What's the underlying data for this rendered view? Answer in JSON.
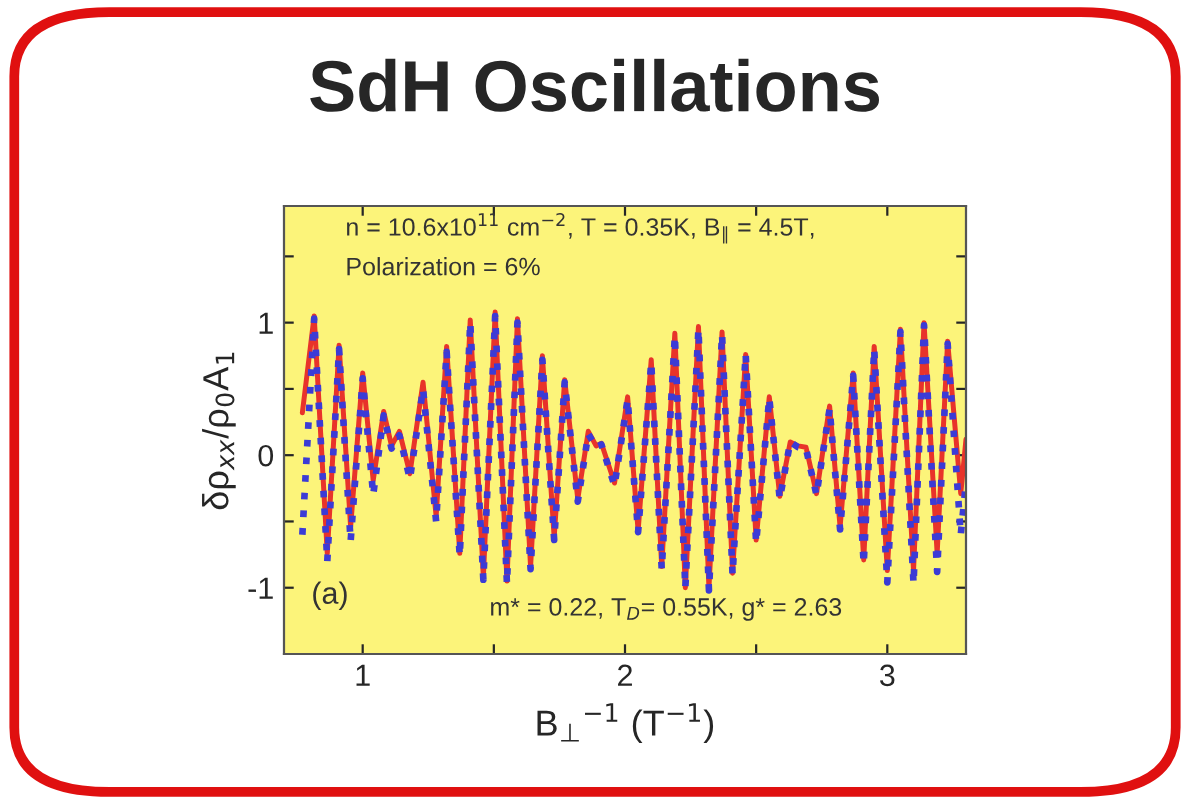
{
  "chart_data": {
    "type": "line",
    "title": "SdH Oscillations",
    "xlabel": "B$_{⊥}$$^{−1}$ (T$^{−1}$)",
    "ylabel": "δρ$_{xx}$/ρ$_{0}$A$_{1}$",
    "annotations": [
      "n = 10.6x10$^{11}$ cm$^{−2}$, T = 0.35K, B$_{∥}$ = 4.5T,",
      "Polarization = 6%",
      "(a)",
      "m* = 0.22, T$_{D}$= 0.55K, g* = 2.63"
    ],
    "x": [
      0.77,
      0.815,
      0.865,
      0.91,
      0.954,
      1.0,
      1.04,
      1.08,
      1.11,
      1.14,
      1.18,
      1.23,
      1.28,
      1.32,
      1.37,
      1.41,
      1.46,
      1.505,
      1.55,
      1.59,
      1.64,
      1.685,
      1.73,
      1.77,
      1.82,
      1.86,
      1.89,
      1.91,
      1.96,
      2.01,
      2.05,
      2.1,
      2.14,
      2.19,
      2.23,
      2.28,
      2.32,
      2.37,
      2.41,
      2.46,
      2.5,
      2.55,
      2.59,
      2.63,
      2.66,
      2.69,
      2.73,
      2.78,
      2.82,
      2.87,
      2.91,
      2.95,
      3.0,
      3.05,
      3.1,
      3.14,
      3.19,
      3.23,
      3.28,
      3.3
    ],
    "series": [
      {
        "color": "#e8332a",
        "line_style": "solid",
        "values": [
          0.32,
          1.05,
          -0.74,
          0.83,
          -0.54,
          0.62,
          -0.19,
          0.33,
          0.07,
          0.18,
          -0.14,
          0.55,
          -0.46,
          0.82,
          -0.74,
          1.02,
          -0.92,
          1.08,
          -0.95,
          1.03,
          -0.84,
          0.75,
          -0.62,
          0.57,
          -0.33,
          0.18,
          0.07,
          0.09,
          -0.21,
          0.44,
          -0.57,
          0.72,
          -0.84,
          0.92,
          -1.0,
          0.97,
          -1.0,
          0.93,
          -0.89,
          0.76,
          -0.64,
          0.44,
          -0.31,
          0.1,
          0.07,
          0.06,
          -0.29,
          0.37,
          -0.54,
          0.62,
          -0.79,
          0.82,
          -0.87,
          0.95,
          -0.87,
          1.0,
          -0.74,
          0.86,
          -0.29,
          0.12
        ]
      },
      {
        "color": "#3b3bd6",
        "line_style": "dotted",
        "values": [
          -0.6,
          1.03,
          -0.8,
          0.8,
          -0.65,
          0.58,
          -0.3,
          0.3,
          0.05,
          0.15,
          -0.18,
          0.5,
          -0.5,
          0.78,
          -0.76,
          1.0,
          -0.94,
          1.05,
          -0.97,
          1.0,
          -0.86,
          0.72,
          -0.64,
          0.55,
          -0.35,
          0.16,
          0.06,
          0.08,
          -0.23,
          0.42,
          -0.58,
          0.7,
          -0.86,
          0.9,
          -1.0,
          0.95,
          -1.02,
          0.91,
          -0.9,
          0.76,
          -0.66,
          0.43,
          -0.33,
          0.1,
          0.06,
          0.05,
          -0.3,
          0.35,
          -0.56,
          0.6,
          -0.82,
          0.8,
          -0.96,
          0.93,
          -0.97,
          0.98,
          -0.88,
          0.84,
          -0.6,
          -0.2
        ]
      }
    ],
    "xlim": [
      0.7,
      3.3
    ],
    "ylim": [
      -1.5,
      1.88
    ],
    "xticks": [
      1,
      {
        "value": 1.5,
        "label": null
      },
      2,
      {
        "value": 2.5,
        "label": null
      },
      3
    ],
    "yticks": [
      -1,
      {
        "value": -0.5,
        "label": null
      },
      0,
      {
        "value": 0.5,
        "label": null
      },
      1,
      {
        "value": 1.5,
        "label": null
      }
    ],
    "grid": false,
    "legend": false,
    "marker": "none"
  }
}
